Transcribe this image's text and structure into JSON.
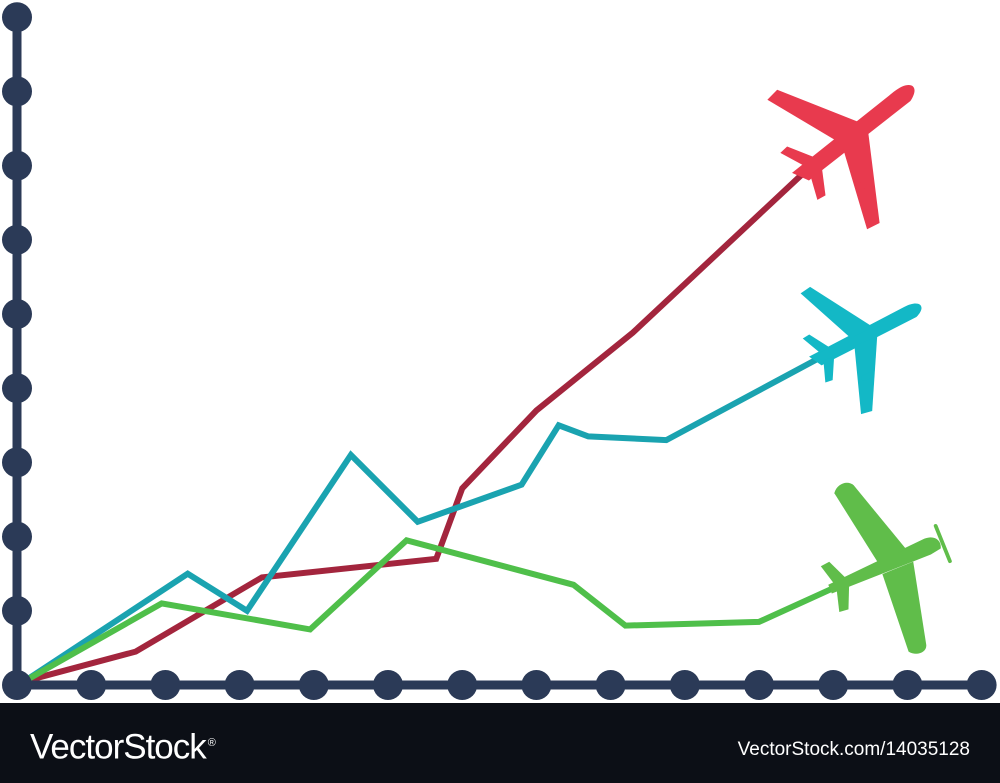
{
  "chart_data": {
    "type": "line",
    "title": "",
    "xlabel": "",
    "ylabel": "",
    "x": [
      0,
      1,
      2,
      3,
      4,
      5,
      6,
      7,
      8,
      9,
      10,
      11,
      12,
      13
    ],
    "xlim": [
      0,
      13
    ],
    "ylim": [
      0,
      9
    ],
    "grid": false,
    "axis_color": "#2b3a57",
    "x_axis_ticks": 13,
    "y_axis_ticks": 9,
    "series": [
      {
        "color": "#a3253d",
        "marker": "jet-plane-icon",
        "marker_color": "#e83a4e",
        "points": [
          [
            0.1,
            0.05
          ],
          [
            1.6,
            0.45
          ],
          [
            3.3,
            1.45
          ],
          [
            5.65,
            1.7
          ],
          [
            6.0,
            2.65
          ],
          [
            7.0,
            3.7
          ],
          [
            8.3,
            4.75
          ],
          [
            10.6,
            6.9
          ]
        ]
      },
      {
        "color": "#1aa3b0",
        "marker": "jet-plane-icon",
        "marker_color": "#13b8c6",
        "points": [
          [
            0.1,
            0.05
          ],
          [
            2.3,
            1.5
          ],
          [
            3.1,
            1.0
          ],
          [
            4.5,
            3.1
          ],
          [
            5.4,
            2.2
          ],
          [
            6.8,
            2.7
          ],
          [
            7.3,
            3.5
          ],
          [
            7.7,
            3.35
          ],
          [
            8.75,
            3.3
          ],
          [
            10.8,
            4.4
          ]
        ]
      },
      {
        "color": "#4fbf4a",
        "marker": "propeller-plane-icon",
        "marker_color": "#60bd4a",
        "points": [
          [
            0.1,
            0.05
          ],
          [
            1.95,
            1.1
          ],
          [
            3.95,
            0.75
          ],
          [
            5.25,
            1.95
          ],
          [
            7.5,
            1.35
          ],
          [
            8.2,
            0.8
          ],
          [
            10.0,
            0.85
          ],
          [
            11.1,
            1.35
          ]
        ]
      }
    ]
  },
  "footer": {
    "brand": "VectorStock",
    "brand_mark": "®",
    "image_id": "VectorStock.com/14035128",
    "background": "#0c0f16",
    "text_color": "#ffffff"
  }
}
